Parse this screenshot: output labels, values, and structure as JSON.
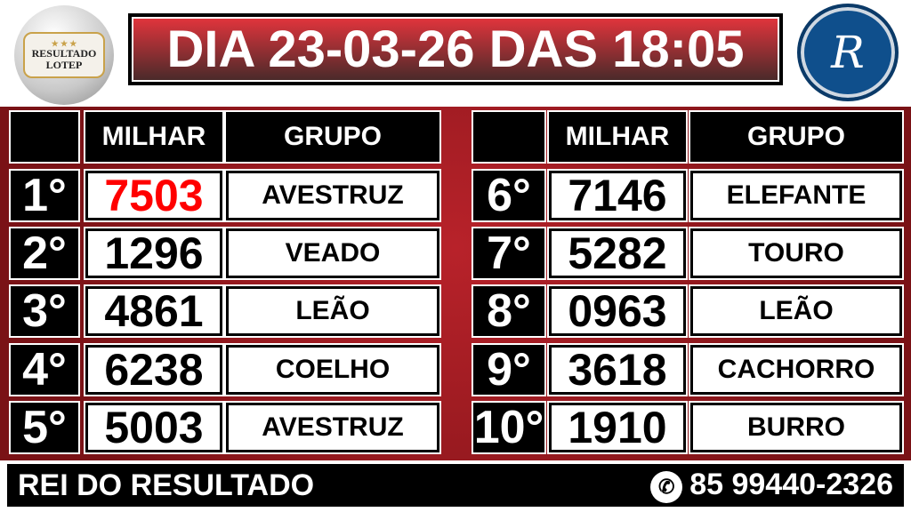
{
  "logo_left": {
    "line1": "RESULTADO",
    "line2": "LOTEP"
  },
  "logo_right": {
    "text": "Rei",
    "letter": "R"
  },
  "title": "DIA 23-03-26 DAS 18:05",
  "headers": {
    "milhar": "MILHAR",
    "grupo": "GRUPO"
  },
  "colors": {
    "first_prize": "#ff0000",
    "board": "#b8222a"
  },
  "results": [
    {
      "pos": "1°",
      "milhar": "7503",
      "grupo": "AVESTRUZ"
    },
    {
      "pos": "2°",
      "milhar": "1296",
      "grupo": "VEADO"
    },
    {
      "pos": "3°",
      "milhar": "4861",
      "grupo": "LEÃO"
    },
    {
      "pos": "4°",
      "milhar": "6238",
      "grupo": "COELHO"
    },
    {
      "pos": "5°",
      "milhar": "5003",
      "grupo": "AVESTRUZ"
    },
    {
      "pos": "6°",
      "milhar": "7146",
      "grupo": "ELEFANTE"
    },
    {
      "pos": "7°",
      "milhar": "5282",
      "grupo": "TOURO"
    },
    {
      "pos": "8°",
      "milhar": "0963",
      "grupo": "LEÃO"
    },
    {
      "pos": "9°",
      "milhar": "3618",
      "grupo": "CACHORRO"
    },
    {
      "pos": "10°",
      "milhar": "1910",
      "grupo": "BURRO"
    }
  ],
  "footer": {
    "brand": "REI DO RESULTADO",
    "phone": "85 99440-2326",
    "phone_icon": "whatsapp-icon"
  }
}
